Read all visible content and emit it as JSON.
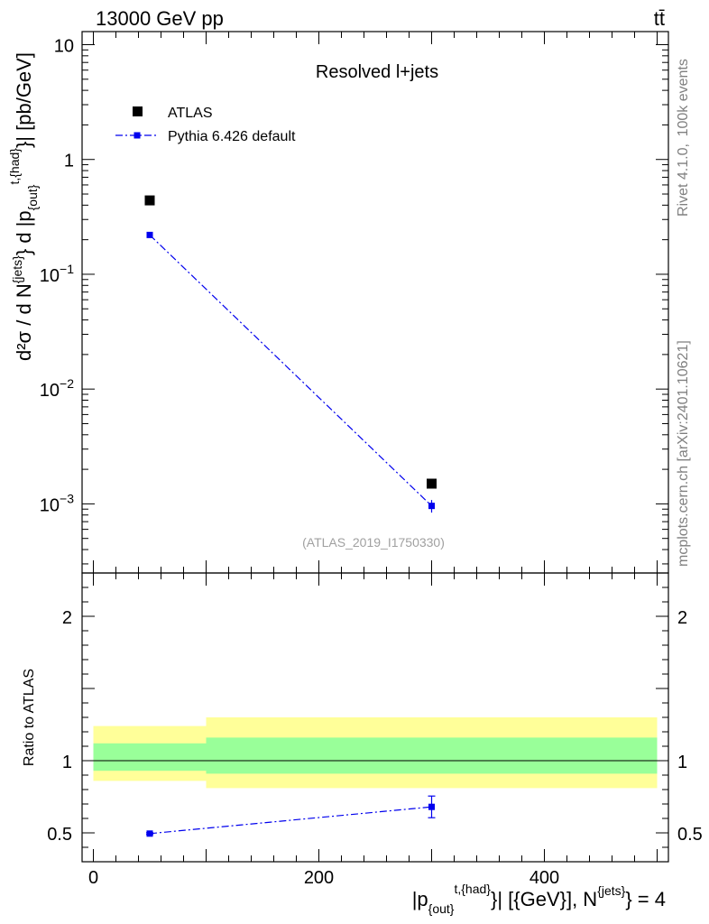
{
  "header": {
    "left": "13000 GeV pp",
    "right": "tt̄"
  },
  "side_labels": {
    "rivet": "Rivet 4.1.0,  100k events",
    "mcplots": "mcplots.cern.ch [arXiv:2401.10621]"
  },
  "chart_data": [
    {
      "type": "scatter",
      "panel": "main",
      "title": "Resolved l+jets",
      "watermark": "(ATLAS_2019_I1750330)",
      "ylabel": {
        "base": "d²σ / d N",
        "sup1": "{jets}",
        "mid": "} d |p",
        "sub": "{out}",
        "sup2": "t,{had}",
        "end": "}| [pb/GeV]"
      },
      "yscale": "log",
      "ylim": [
        0.00025,
        13
      ],
      "xlim": [
        -10,
        510
      ],
      "y_ticks": [
        {
          "value": 0.001,
          "mantissa": "10",
          "exp": "−3"
        },
        {
          "value": 0.01,
          "mantissa": "10",
          "exp": "−2"
        },
        {
          "value": 0.1,
          "mantissa": "10",
          "exp": "−1"
        },
        {
          "value": 1,
          "mantissa": "1",
          "exp": ""
        },
        {
          "value": 10,
          "mantissa": "10",
          "exp": ""
        }
      ],
      "legend": {
        "placement": "top-left",
        "entries": [
          {
            "label": "ATLAS",
            "marker": "square",
            "color": "#000000"
          },
          {
            "label": "Pythia 6.426 default",
            "marker": "square-dashdot",
            "color": "#0000ee"
          }
        ]
      },
      "series": [
        {
          "name": "ATLAS",
          "color": "#000000",
          "points": [
            {
              "x": 50,
              "y": 0.44
            },
            {
              "x": 300,
              "y": 0.0015
            }
          ]
        },
        {
          "name": "Pythia 6.426 default",
          "color": "#0000ee",
          "points": [
            {
              "x": 50,
              "y": 0.22,
              "err": 0.004
            },
            {
              "x": 300,
              "y": 0.00096,
              "err": 0.00012
            }
          ]
        }
      ]
    },
    {
      "type": "line",
      "panel": "ratio",
      "ylabel": "Ratio to ATLAS",
      "xlabel": {
        "pre": "|p",
        "sub": "{out}",
        "sup1": "t,{had}",
        "mid": "}| [{GeV}], N",
        "sup2": "{jets}",
        "end": "} = 4"
      },
      "ylim": [
        0.3,
        2.3
      ],
      "xlim": [
        -10,
        510
      ],
      "x_ticks": [
        {
          "value": 0,
          "label": "0"
        },
        {
          "value": 200,
          "label": "200"
        },
        {
          "value": 400,
          "label": "400"
        }
      ],
      "y_ticks": [
        {
          "value": 0.5,
          "label": "0.5"
        },
        {
          "value": 1,
          "label": "1"
        },
        {
          "value": 2,
          "label": "2"
        }
      ],
      "bands": [
        {
          "x0": 0,
          "x1": 100,
          "stat_lo": 0.93,
          "stat_hi": 1.12,
          "tot_lo": 0.86,
          "tot_hi": 1.24
        },
        {
          "x0": 100,
          "x1": 500,
          "stat_lo": 0.91,
          "stat_hi": 1.16,
          "tot_lo": 0.81,
          "tot_hi": 1.3
        }
      ],
      "band_colors": {
        "total": "#ffff99",
        "stat": "#99ff99"
      },
      "series": [
        {
          "name": "Pythia 6.426 default",
          "color": "#0000ee",
          "points": [
            {
              "x": 50,
              "y": 0.495,
              "err": 0.006
            },
            {
              "x": 300,
              "y": 0.68,
              "err": 0.075
            }
          ]
        }
      ]
    }
  ]
}
